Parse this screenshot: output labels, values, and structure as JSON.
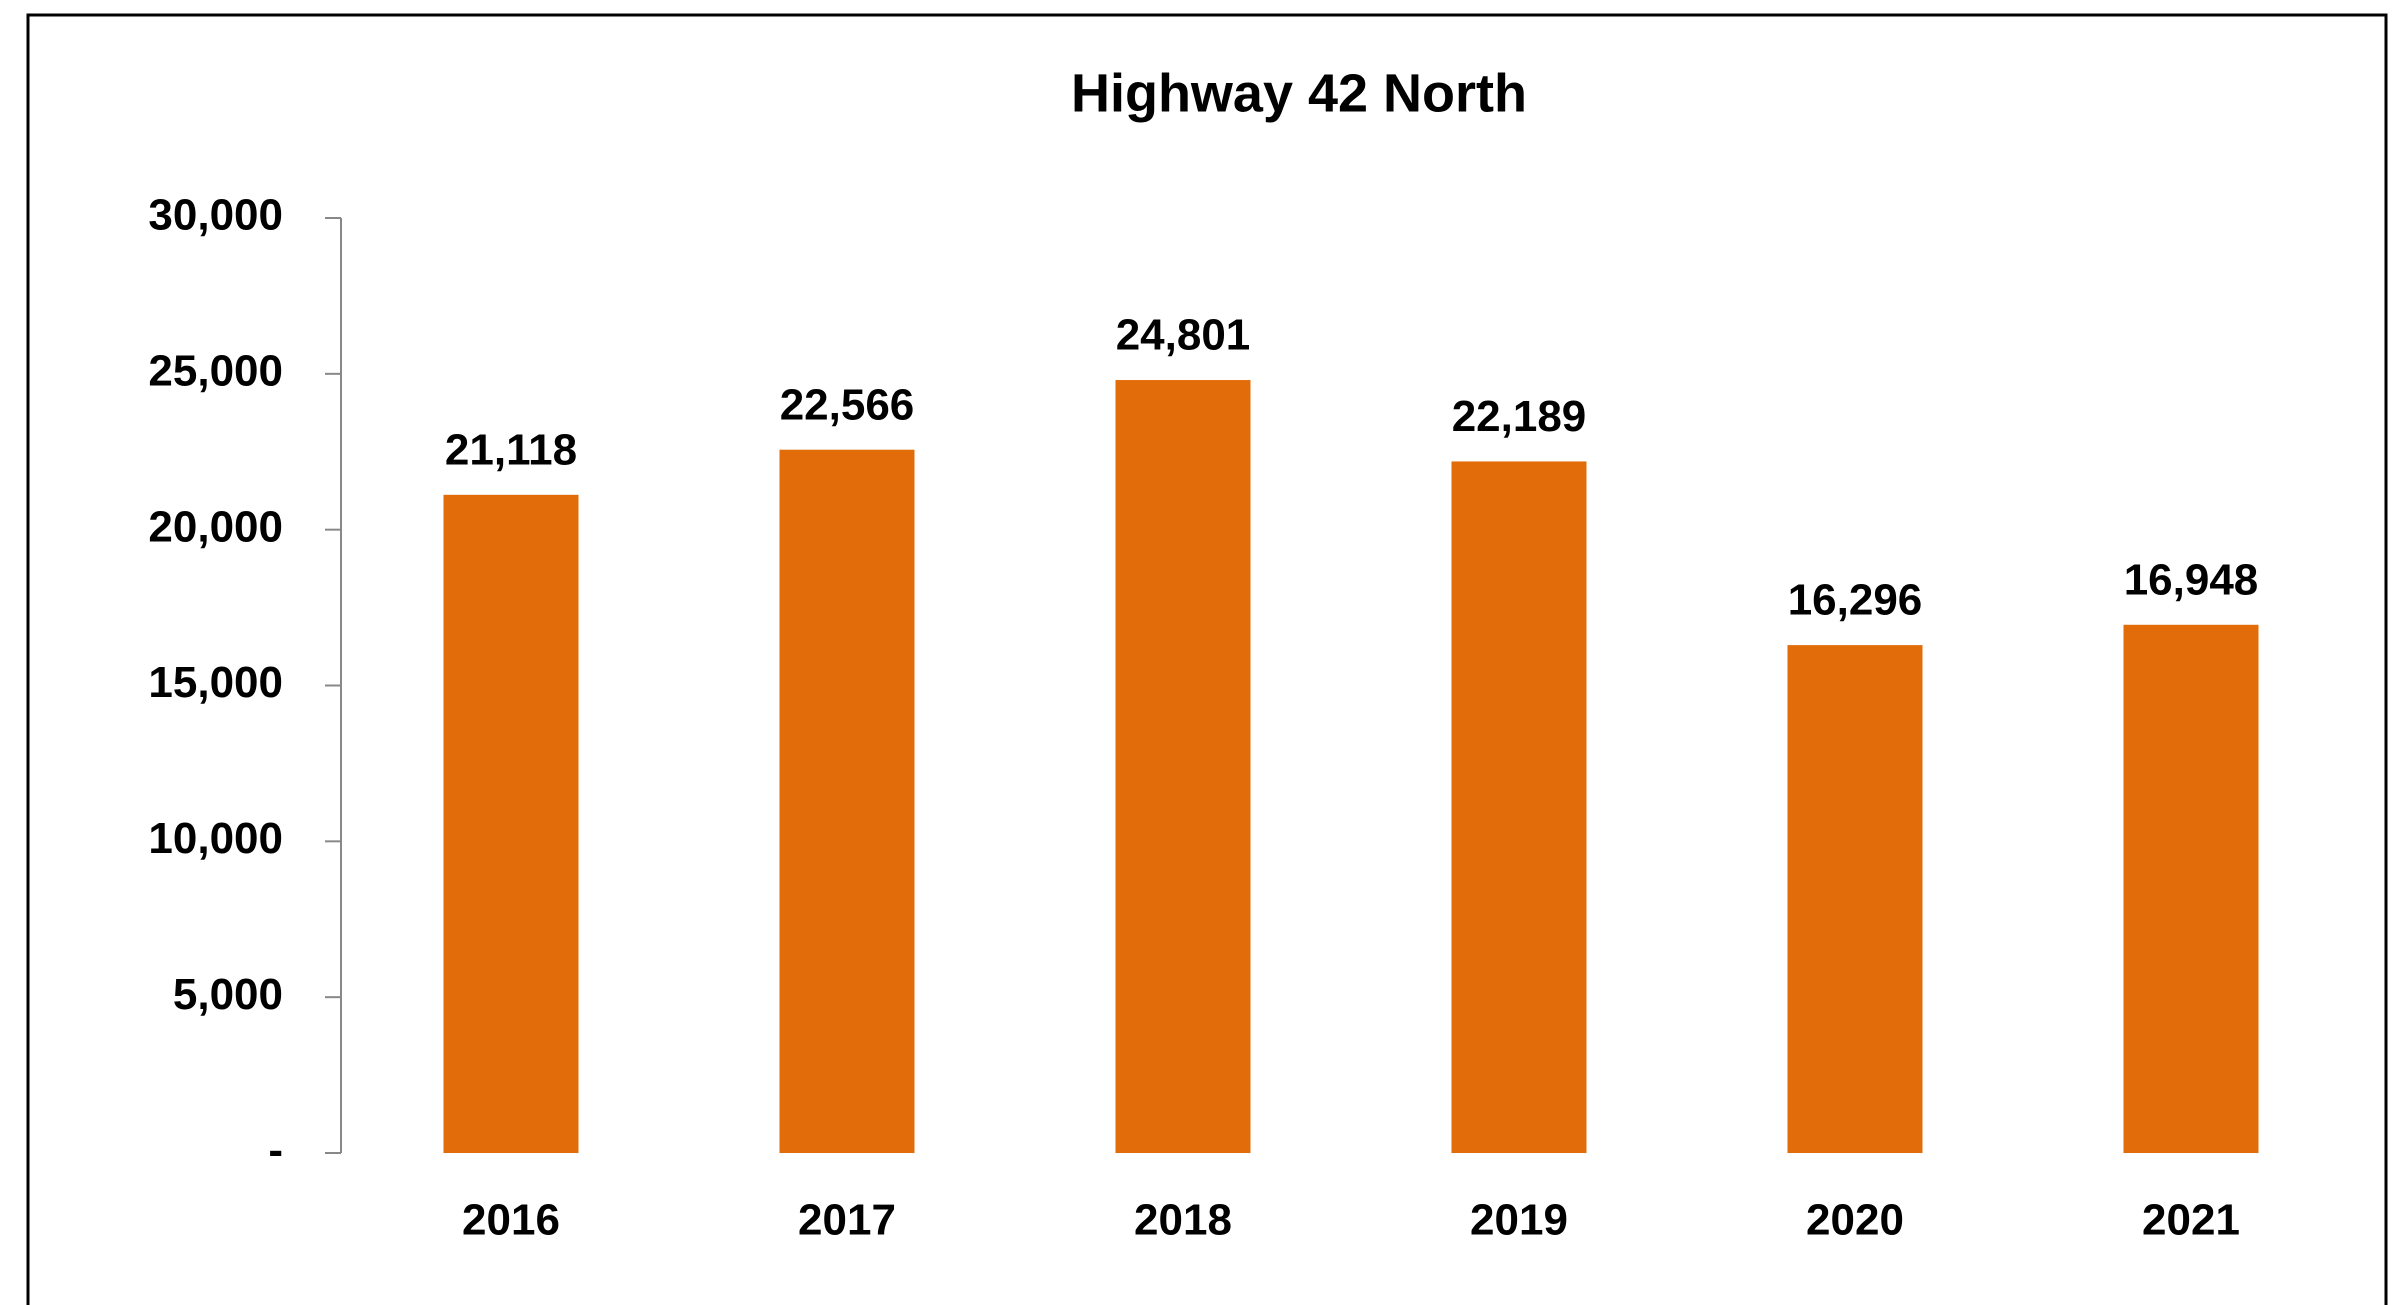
{
  "chart_data": {
    "type": "bar",
    "title": "Highway 42 North",
    "categories": [
      "2016",
      "2017",
      "2018",
      "2019",
      "2020",
      "2021"
    ],
    "values": [
      21118,
      22566,
      24801,
      22189,
      16296,
      16948
    ],
    "value_labels": [
      "21,118",
      "22,566",
      "24,801",
      "22,189",
      "16,296",
      "16,948"
    ],
    "color": "#e36c0a",
    "ylim": [
      0,
      30000
    ],
    "yticks": [
      {
        "value": 0,
        "label": "-"
      },
      {
        "value": 5000,
        "label": "5,000"
      },
      {
        "value": 10000,
        "label": "10,000"
      },
      {
        "value": 15000,
        "label": "15,000"
      },
      {
        "value": 20000,
        "label": "20,000"
      },
      {
        "value": 25000,
        "label": "25,000"
      },
      {
        "value": 30000,
        "label": "30,000"
      }
    ],
    "grid": false
  }
}
